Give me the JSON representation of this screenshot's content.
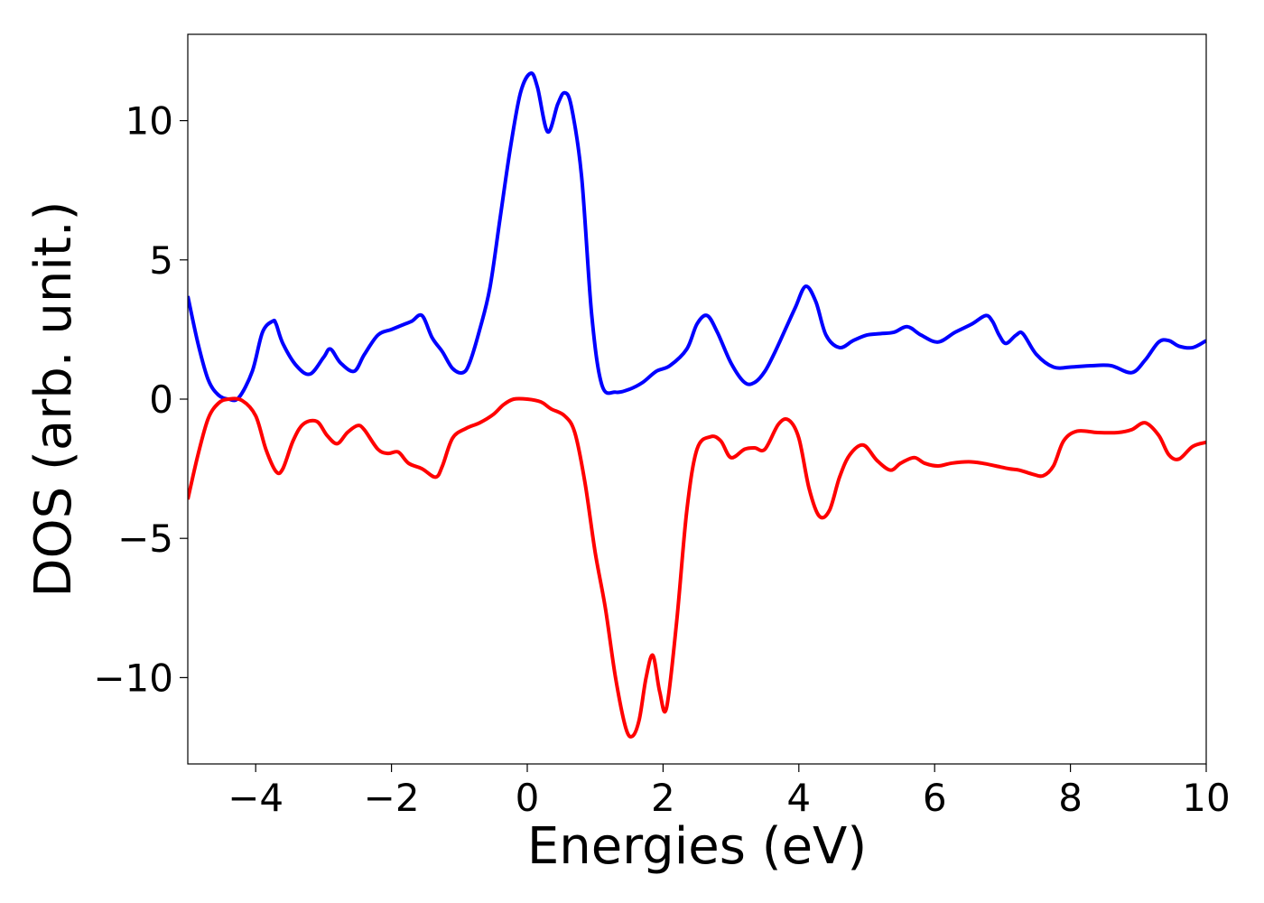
{
  "chart_data": {
    "type": "line",
    "title": "",
    "xlabel": "Energies (eV)",
    "ylabel": "DOS (arb. unit.)",
    "xlim": [
      -5,
      10
    ],
    "ylim": [
      -13.1,
      13.1
    ],
    "grid": false,
    "legend": "none",
    "xticks": [
      -4,
      -2,
      0,
      2,
      4,
      6,
      8,
      10
    ],
    "xtick_labels": [
      "−4",
      "−2",
      "0",
      "2",
      "4",
      "6",
      "8",
      "10"
    ],
    "yticks": [
      -10,
      -5,
      0,
      5,
      10
    ],
    "ytick_labels": [
      "−10",
      "−5",
      "0",
      "5",
      "10"
    ],
    "series": [
      {
        "color": "#0000ff",
        "x": [
          -5,
          -4.85,
          -4.7,
          -4.55,
          -4.4,
          -4.25,
          -4.05,
          -3.9,
          -3.75,
          -3.7,
          -3.6,
          -3.4,
          -3.2,
          -3.0,
          -2.9,
          -2.75,
          -2.55,
          -2.4,
          -2.2,
          -2.0,
          -1.85,
          -1.7,
          -1.55,
          -1.4,
          -1.25,
          -1.1,
          -0.95,
          -0.85,
          -0.7,
          -0.55,
          -0.4,
          -0.25,
          -0.1,
          0.05,
          0.15,
          0.3,
          0.45,
          0.55,
          0.65,
          0.8,
          0.95,
          1.1,
          1.3,
          1.5,
          1.7,
          1.9,
          2.1,
          2.35,
          2.5,
          2.65,
          2.8,
          3.0,
          3.2,
          3.35,
          3.5,
          3.65,
          3.8,
          3.95,
          4.1,
          4.25,
          4.4,
          4.6,
          4.8,
          5.0,
          5.2,
          5.4,
          5.6,
          5.8,
          6.05,
          6.3,
          6.55,
          6.75,
          6.85,
          6.95,
          7.05,
          7.2,
          7.3,
          7.5,
          7.75,
          8.0,
          8.3,
          8.6,
          8.9,
          9.1,
          9.3,
          9.45,
          9.6,
          9.8,
          10.0
        ],
        "y": [
          3.7,
          2.0,
          0.7,
          0.15,
          0.0,
          0.05,
          1.0,
          2.4,
          2.8,
          2.7,
          2.0,
          1.2,
          0.9,
          1.5,
          1.8,
          1.3,
          1.0,
          1.6,
          2.3,
          2.5,
          2.65,
          2.8,
          3.0,
          2.2,
          1.7,
          1.1,
          0.95,
          1.3,
          2.5,
          4.0,
          6.5,
          9.0,
          11.0,
          11.7,
          11.2,
          9.6,
          10.6,
          11.0,
          10.5,
          8.0,
          3.0,
          0.5,
          0.25,
          0.35,
          0.6,
          1.0,
          1.2,
          1.8,
          2.7,
          3.0,
          2.4,
          1.3,
          0.6,
          0.6,
          1.0,
          1.7,
          2.5,
          3.3,
          4.05,
          3.5,
          2.3,
          1.85,
          2.1,
          2.3,
          2.35,
          2.4,
          2.6,
          2.3,
          2.05,
          2.4,
          2.7,
          3.0,
          2.8,
          2.3,
          2.0,
          2.3,
          2.35,
          1.6,
          1.15,
          1.15,
          1.2,
          1.2,
          0.95,
          1.4,
          2.05,
          2.1,
          1.9,
          1.85,
          2.1
        ]
      },
      {
        "color": "#ff0000",
        "x": [
          -5,
          -4.85,
          -4.7,
          -4.55,
          -4.4,
          -4.2,
          -4.0,
          -3.85,
          -3.7,
          -3.6,
          -3.45,
          -3.3,
          -3.1,
          -2.95,
          -2.8,
          -2.65,
          -2.5,
          -2.4,
          -2.2,
          -2.05,
          -1.9,
          -1.75,
          -1.55,
          -1.35,
          -1.25,
          -1.1,
          -0.9,
          -0.7,
          -0.5,
          -0.35,
          -0.2,
          0.0,
          0.2,
          0.35,
          0.55,
          0.7,
          0.85,
          1.0,
          1.15,
          1.3,
          1.45,
          1.55,
          1.65,
          1.75,
          1.85,
          1.95,
          2.05,
          2.2,
          2.35,
          2.5,
          2.7,
          2.85,
          3.0,
          3.2,
          3.35,
          3.5,
          3.7,
          3.85,
          4.0,
          4.15,
          4.3,
          4.45,
          4.6,
          4.75,
          4.95,
          5.15,
          5.35,
          5.5,
          5.7,
          5.85,
          6.05,
          6.25,
          6.5,
          6.7,
          6.9,
          7.1,
          7.25,
          7.45,
          7.6,
          7.75,
          7.9,
          8.1,
          8.4,
          8.7,
          8.9,
          9.1,
          9.3,
          9.45,
          9.6,
          9.8,
          10.0
        ],
        "y": [
          -3.6,
          -2.0,
          -0.7,
          -0.15,
          0.0,
          -0.05,
          -0.6,
          -1.8,
          -2.6,
          -2.5,
          -1.5,
          -0.9,
          -0.8,
          -1.3,
          -1.6,
          -1.2,
          -0.95,
          -1.1,
          -1.8,
          -1.95,
          -1.9,
          -2.3,
          -2.5,
          -2.8,
          -2.4,
          -1.4,
          -1.05,
          -0.85,
          -0.55,
          -0.2,
          0.0,
          0.0,
          -0.1,
          -0.35,
          -0.6,
          -1.2,
          -3.0,
          -5.5,
          -7.5,
          -10.0,
          -11.8,
          -12.1,
          -11.5,
          -10.0,
          -9.2,
          -10.5,
          -11.1,
          -8.0,
          -4.0,
          -1.8,
          -1.35,
          -1.5,
          -2.1,
          -1.8,
          -1.75,
          -1.8,
          -0.9,
          -0.75,
          -1.4,
          -3.2,
          -4.2,
          -4.0,
          -2.8,
          -2.0,
          -1.65,
          -2.2,
          -2.55,
          -2.3,
          -2.1,
          -2.3,
          -2.4,
          -2.3,
          -2.25,
          -2.3,
          -2.4,
          -2.5,
          -2.55,
          -2.7,
          -2.75,
          -2.4,
          -1.5,
          -1.15,
          -1.2,
          -1.2,
          -1.1,
          -0.85,
          -1.3,
          -2.0,
          -2.15,
          -1.7,
          -1.55
        ]
      }
    ]
  }
}
